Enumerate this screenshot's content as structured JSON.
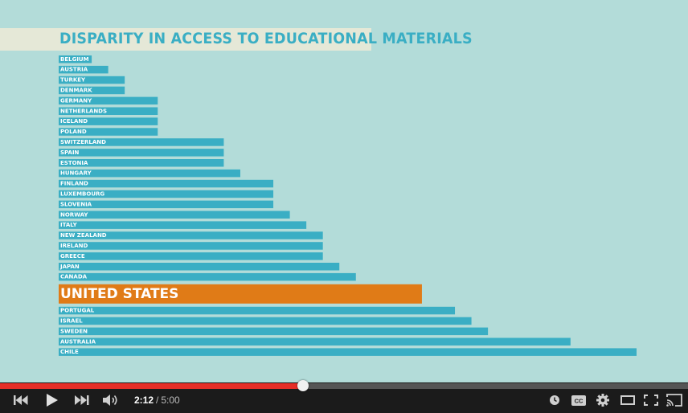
{
  "video": {
    "title": "DISPARITY IN ACCESS TO EDUCATIONAL MATERIALS",
    "colors": {
      "background": "#b3dcd9",
      "title_band": "#e5e8d7",
      "title_text": "#3aaec4",
      "bar": "#3aaec4",
      "highlight_bar": "#e07b17"
    }
  },
  "chart_data": {
    "type": "bar",
    "orientation": "horizontal",
    "title": "DISPARITY IN ACCESS TO EDUCATIONAL MATERIALS",
    "xlabel": "",
    "ylabel": "",
    "grid": false,
    "highlight": "UNITED STATES",
    "categories": [
      "BELGIUM",
      "AUSTRIA",
      "TURKEY",
      "DENMARK",
      "GERMANY",
      "NETHERLANDS",
      "ICELAND",
      "POLAND",
      "SWITZERLAND",
      "SPAIN",
      "ESTONIA",
      "HUNGARY",
      "FINLAND",
      "LUXEMBOURG",
      "SLOVENIA",
      "NORWAY",
      "ITALY",
      "NEW ZEALAND",
      "IRELAND",
      "GREECE",
      "JAPAN",
      "CANADA",
      "UNITED STATES",
      "PORTUGAL",
      "ISRAEL",
      "SWEDEN",
      "AUSTRALIA",
      "CHILE"
    ],
    "values": [
      2,
      3,
      4,
      4,
      6,
      6,
      6,
      6,
      10,
      10,
      10,
      11,
      13,
      13,
      13,
      14,
      15,
      16,
      16,
      16,
      17,
      18,
      22,
      24,
      25,
      26,
      31,
      35
    ],
    "xlim": [
      0,
      35
    ]
  },
  "player": {
    "progress_fraction": 0.44,
    "current_time": "2:12",
    "separator": "/",
    "duration": "5:00",
    "colors": {
      "played": "#e52d27",
      "track": "#555555",
      "bar_bg": "#1b1b1b"
    },
    "icons": {
      "previous": "skip-previous-icon",
      "play": "play-icon",
      "next": "skip-next-icon",
      "volume": "volume-icon",
      "watch_later": "clock-icon",
      "captions": "captions-icon",
      "settings": "gear-icon",
      "theater": "theater-mode-icon",
      "fullscreen": "fullscreen-icon",
      "cast": "cast-icon"
    }
  }
}
